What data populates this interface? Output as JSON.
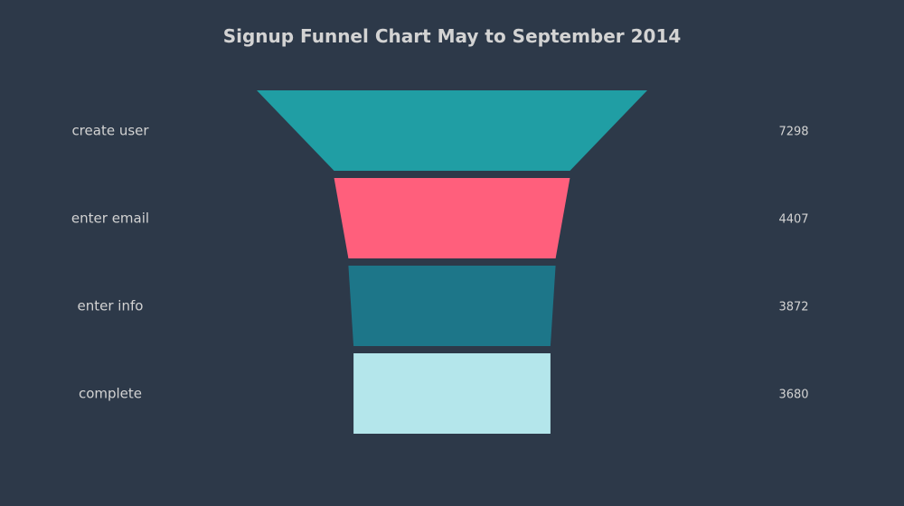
{
  "chart_data": {
    "type": "funnel",
    "title": "Signup Funnel Chart May to September 2014",
    "categories": [
      "create user",
      "enter email",
      "enter info",
      "complete"
    ],
    "values": [
      7298,
      4407,
      3872,
      3680
    ],
    "colors": [
      "#209ea4",
      "#ff5f7c",
      "#1d7689",
      "#b4e6eb"
    ],
    "background": "#2d3949",
    "text_color": "#d3d3d3"
  }
}
